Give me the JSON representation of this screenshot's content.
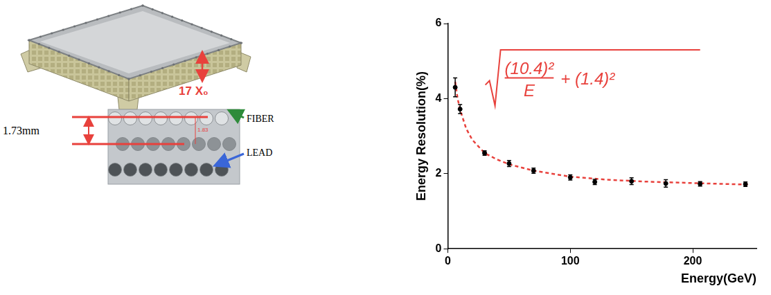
{
  "panels": {
    "detector": {
      "thickness_label": "17 X₀"
    },
    "micrograph": {
      "pitch_label": "1.73mm",
      "inner_label": "1.83",
      "fiber_label": "FIBER",
      "lead_label": "LEAD"
    }
  },
  "chart_data": {
    "type": "scatter",
    "x_label": "Energy(GeV)",
    "y_label": "Energy Resolution(%)",
    "xlim": [
      0,
      252
    ],
    "xticks": [
      0,
      100,
      200
    ],
    "ylim": [
      0,
      6
    ],
    "yticks": [
      0,
      2,
      4,
      6
    ],
    "grid": false,
    "annotation": {
      "numerator": "(10.4)²",
      "denominator": "E",
      "term": "+ (1.4)²",
      "color": "#e8413c"
    },
    "series": [
      {
        "type": "scatter",
        "color": "#000000",
        "marker": "circle",
        "x": [
          6,
          10,
          30,
          50,
          70,
          100,
          120,
          150,
          178,
          206,
          243
        ],
        "values": [
          4.3,
          3.72,
          2.55,
          2.27,
          2.08,
          1.9,
          1.78,
          1.8,
          1.74,
          1.73,
          1.72
        ],
        "errors": [
          0.25,
          0.12,
          0.06,
          0.08,
          0.07,
          0.07,
          0.07,
          0.09,
          0.1,
          0.06,
          0.06
        ]
      },
      {
        "type": "line",
        "color": "#e8413c",
        "line_style": "dashed",
        "x": [
          6,
          8,
          10,
          15,
          20,
          30,
          40,
          50,
          70,
          100,
          130,
          160,
          200,
          245
        ],
        "values": [
          4.45,
          4.0,
          3.7,
          3.2,
          2.9,
          2.55,
          2.38,
          2.25,
          2.08,
          1.92,
          1.84,
          1.79,
          1.75,
          1.71
        ]
      }
    ]
  }
}
